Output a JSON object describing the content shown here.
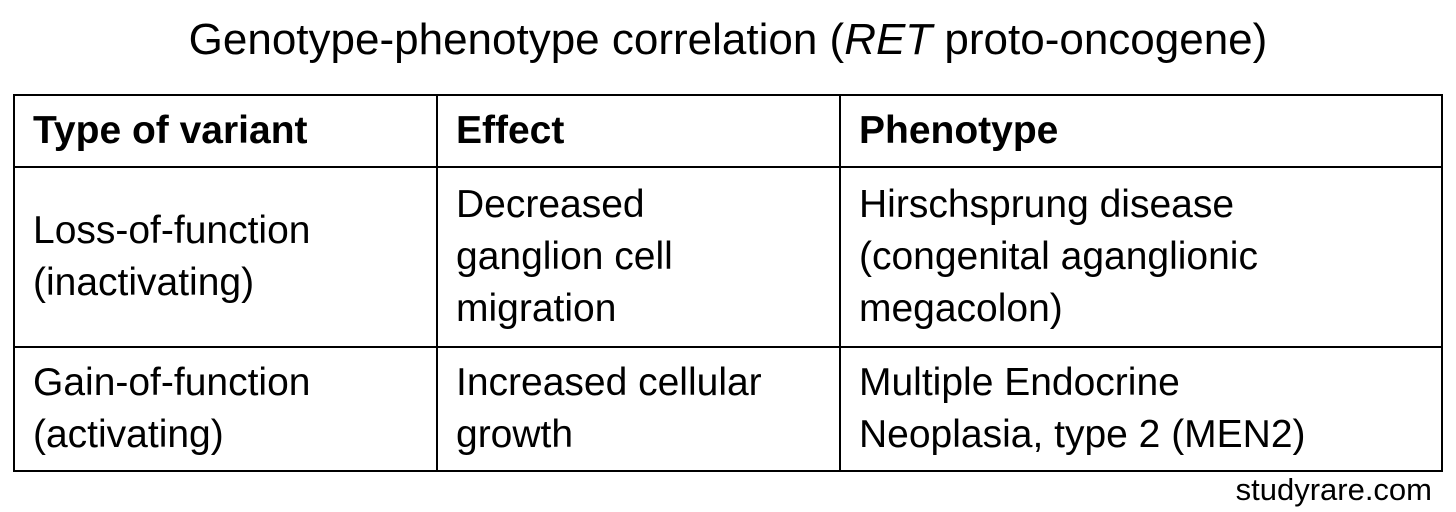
{
  "title": {
    "prefix": "Genotype-phenotype correlation (",
    "gene": "RET",
    "suffix": " proto-oncogene)"
  },
  "table": {
    "headers": [
      "Type of variant",
      "Effect",
      "Phenotype"
    ],
    "rows": [
      {
        "type": [
          "Loss-of-function",
          "(inactivating)"
        ],
        "effect": [
          "Decreased",
          "ganglion cell",
          "migration"
        ],
        "phenotype": [
          "Hirschsprung disease",
          "(congenital aganglionic",
          "megacolon)"
        ]
      },
      {
        "type": [
          "Gain-of-function",
          "(activating)"
        ],
        "effect": [
          "Increased cellular",
          "growth"
        ],
        "phenotype": [
          "Multiple Endocrine",
          "Neoplasia, type 2 (MEN2)"
        ]
      }
    ]
  },
  "footer": {
    "source": "studyrare.com"
  }
}
